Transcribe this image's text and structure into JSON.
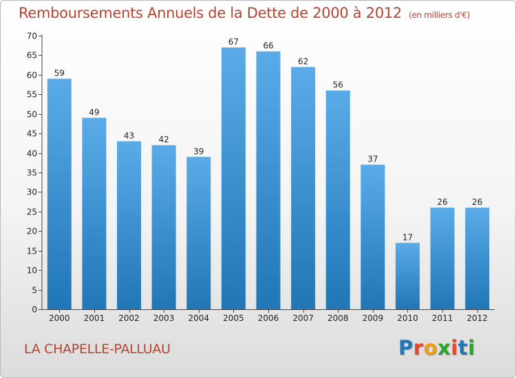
{
  "title": "Remboursements Annuels de la Dette de 2000 à 2012",
  "subtitle": "(en milliers d'€)",
  "city": "LA CHAPELLE-PALLUAU",
  "logo": {
    "text": "Proxiti",
    "colors": [
      "#1f77b4",
      "#e8462a",
      "#f39c12",
      "#2aa52a",
      "#e8462a",
      "#1f77b4",
      "#2aa52a"
    ]
  },
  "colors": {
    "bar_top": "#5aabe8",
    "bar_bottom": "#2176b6",
    "title": "#b5432f"
  },
  "chart_data": {
    "type": "bar",
    "categories": [
      "2000",
      "2001",
      "2002",
      "2003",
      "2004",
      "2005",
      "2006",
      "2007",
      "2008",
      "2009",
      "2010",
      "2011",
      "2012"
    ],
    "values": [
      59,
      49,
      43,
      42,
      39,
      67,
      66,
      62,
      56,
      37,
      17,
      26,
      26
    ],
    "title": "Remboursements Annuels de la Dette de 2000 à 2012",
    "xlabel": "",
    "ylabel": "",
    "ylim": [
      0,
      70
    ],
    "yticks": [
      0,
      5,
      10,
      15,
      20,
      25,
      30,
      35,
      40,
      45,
      50,
      55,
      60,
      65,
      70
    ],
    "grid": false,
    "legend": "none"
  }
}
